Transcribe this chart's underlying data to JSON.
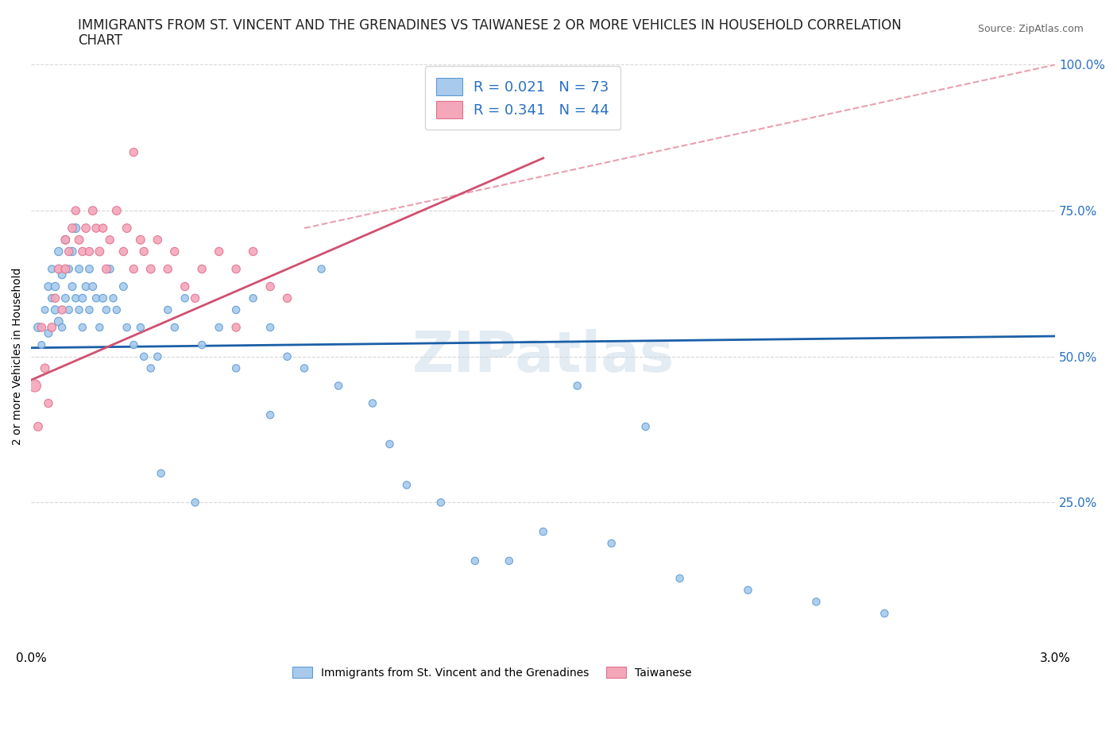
{
  "title_line1": "IMMIGRANTS FROM ST. VINCENT AND THE GRENADINES VS TAIWANESE 2 OR MORE VEHICLES IN HOUSEHOLD CORRELATION",
  "title_line2": "CHART",
  "source_text": "Source: ZipAtlas.com",
  "ylabel": "2 or more Vehicles in Household",
  "xlim": [
    0.0,
    3.0
  ],
  "ylim": [
    0.0,
    100.0
  ],
  "xticks": [
    0.0,
    0.5,
    1.0,
    1.5,
    2.0,
    2.5,
    3.0
  ],
  "xticklabels": [
    "0.0%",
    "",
    "",
    "",
    "",
    "",
    "3.0%"
  ],
  "yticks": [
    0.0,
    25.0,
    50.0,
    75.0,
    100.0
  ],
  "yticklabels": [
    "",
    "25.0%",
    "50.0%",
    "75.0%",
    "100.0%"
  ],
  "blue_fill": "#a8caec",
  "blue_edge": "#5b9bd5",
  "pink_fill": "#f4a7b9",
  "pink_edge": "#e07090",
  "blue_line_color": "#1a5fa8",
  "pink_line_color": "#d05070",
  "dashed_line_color": "#e8a0b0",
  "legend_blue_R": "0.021",
  "legend_blue_N": "73",
  "legend_pink_R": "0.341",
  "legend_pink_N": "44",
  "legend_label_blue": "Immigrants from St. Vincent and the Grenadines",
  "legend_label_pink": "Taiwanese",
  "blue_scatter_x": [
    0.02,
    0.03,
    0.04,
    0.05,
    0.05,
    0.06,
    0.06,
    0.07,
    0.07,
    0.08,
    0.08,
    0.09,
    0.09,
    0.1,
    0.1,
    0.11,
    0.11,
    0.12,
    0.12,
    0.13,
    0.13,
    0.14,
    0.14,
    0.15,
    0.15,
    0.16,
    0.17,
    0.17,
    0.18,
    0.19,
    0.2,
    0.21,
    0.22,
    0.23,
    0.24,
    0.25,
    0.27,
    0.28,
    0.3,
    0.32,
    0.33,
    0.35,
    0.37,
    0.4,
    0.42,
    0.45,
    0.5,
    0.55,
    0.6,
    0.65,
    0.7,
    0.75,
    0.8,
    0.9,
    1.0,
    1.1,
    1.2,
    1.3,
    1.5,
    1.7,
    1.9,
    2.1,
    2.3,
    2.5,
    0.38,
    0.6,
    0.85,
    1.4,
    1.6,
    1.8,
    0.48,
    0.7,
    1.05
  ],
  "blue_scatter_y": [
    55,
    52,
    58,
    54,
    62,
    60,
    65,
    58,
    62,
    56,
    68,
    64,
    55,
    70,
    60,
    65,
    58,
    62,
    68,
    60,
    72,
    65,
    58,
    60,
    55,
    62,
    65,
    58,
    62,
    60,
    55,
    60,
    58,
    65,
    60,
    58,
    62,
    55,
    52,
    55,
    50,
    48,
    50,
    58,
    55,
    60,
    52,
    55,
    58,
    60,
    55,
    50,
    48,
    45,
    42,
    28,
    25,
    15,
    20,
    18,
    12,
    10,
    8,
    6,
    30,
    48,
    65,
    15,
    45,
    38,
    25,
    40,
    35
  ],
  "blue_scatter_size": [
    60,
    40,
    40,
    50,
    50,
    45,
    45,
    55,
    55,
    60,
    55,
    50,
    45,
    55,
    50,
    45,
    45,
    50,
    55,
    45,
    60,
    50,
    45,
    50,
    45,
    50,
    50,
    45,
    50,
    45,
    45,
    50,
    45,
    50,
    45,
    45,
    50,
    45,
    45,
    45,
    45,
    45,
    45,
    45,
    45,
    45,
    45,
    45,
    45,
    45,
    45,
    45,
    45,
    45,
    45,
    45,
    45,
    45,
    45,
    45,
    45,
    45,
    45,
    45,
    45,
    45,
    45,
    45,
    45,
    45,
    45,
    45,
    45
  ],
  "pink_scatter_x": [
    0.01,
    0.02,
    0.03,
    0.04,
    0.05,
    0.06,
    0.07,
    0.08,
    0.09,
    0.1,
    0.1,
    0.11,
    0.12,
    0.13,
    0.14,
    0.15,
    0.16,
    0.17,
    0.18,
    0.19,
    0.2,
    0.21,
    0.22,
    0.23,
    0.25,
    0.27,
    0.28,
    0.3,
    0.32,
    0.33,
    0.35,
    0.37,
    0.4,
    0.42,
    0.45,
    0.48,
    0.5,
    0.55,
    0.6,
    0.65,
    0.7,
    0.75,
    0.3,
    0.6
  ],
  "pink_scatter_y": [
    45,
    38,
    55,
    48,
    42,
    55,
    60,
    65,
    58,
    65,
    70,
    68,
    72,
    75,
    70,
    68,
    72,
    68,
    75,
    72,
    68,
    72,
    65,
    70,
    75,
    68,
    72,
    65,
    70,
    68,
    65,
    70,
    65,
    68,
    62,
    60,
    65,
    68,
    65,
    68,
    62,
    60,
    85,
    55
  ],
  "pink_scatter_size": [
    120,
    60,
    55,
    60,
    55,
    60,
    55,
    60,
    55,
    60,
    60,
    55,
    60,
    55,
    60,
    55,
    60,
    55,
    60,
    55,
    60,
    55,
    60,
    55,
    60,
    55,
    60,
    55,
    60,
    55,
    60,
    55,
    55,
    55,
    55,
    55,
    55,
    55,
    55,
    55,
    55,
    55,
    55,
    55
  ],
  "blue_trend_x": [
    0.0,
    3.0
  ],
  "blue_trend_y": [
    51.5,
    53.5
  ],
  "pink_trend_x": [
    0.0,
    1.5
  ],
  "pink_trend_y": [
    46.0,
    84.0
  ],
  "dashed_trend_x": [
    0.8,
    3.0
  ],
  "dashed_trend_y": [
    72.0,
    100.0
  ],
  "watermark_text": "ZIPatlas",
  "background_color": "#ffffff",
  "grid_color": "#d8d8d8",
  "title_fontsize": 12,
  "axis_label_fontsize": 10,
  "tick_fontsize": 11,
  "legend_fontsize": 13,
  "tick_color": "#2970c4"
}
